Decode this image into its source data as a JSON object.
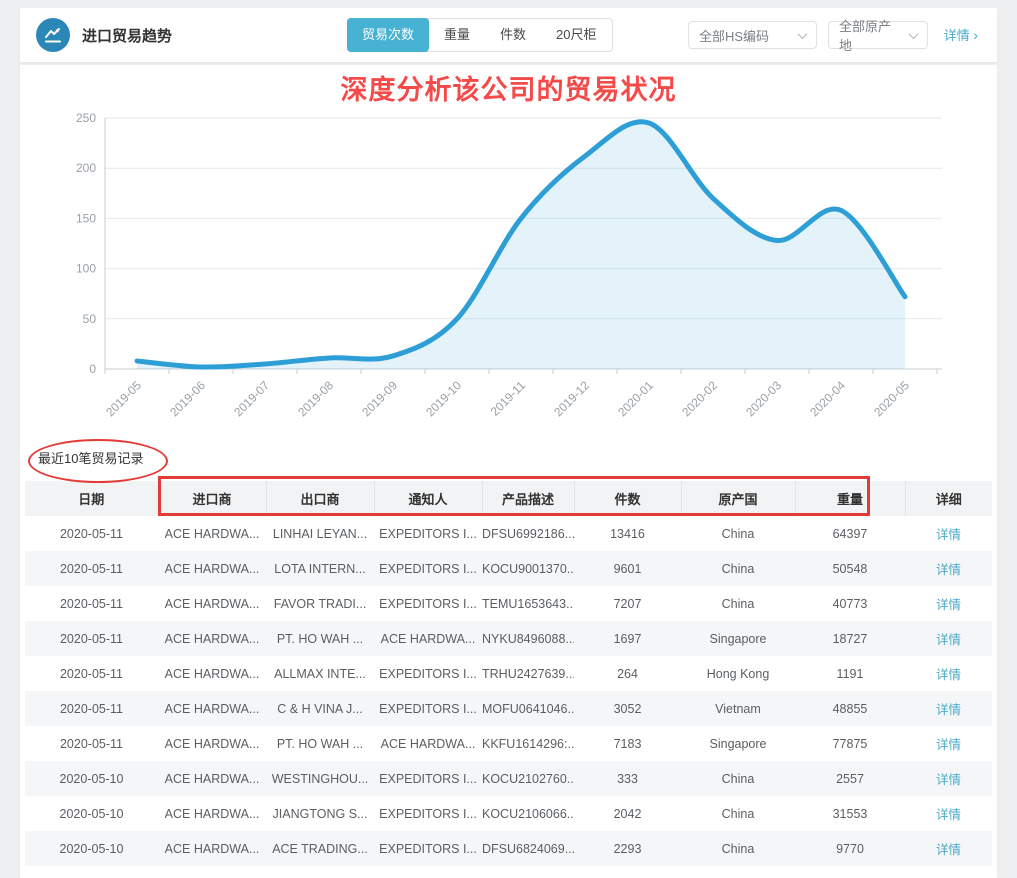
{
  "header": {
    "title": "进口贸易趋势",
    "tabs": [
      {
        "label": "贸易次数",
        "active": true
      },
      {
        "label": "重量",
        "active": false
      },
      {
        "label": "件数",
        "active": false
      },
      {
        "label": "20尺柜",
        "active": false
      }
    ],
    "hs_filter": "全部HS编码",
    "origin_filter": "全部原产地",
    "detail_link": "详情",
    "accent_color": "#48b2d3",
    "icon_color": "#2b87b8"
  },
  "annotations": {
    "chart_title": "深度分析该公司的贸易状况",
    "annotation_color": "#e33b36",
    "title_color": "#f54a4a"
  },
  "chart_data": {
    "type": "area",
    "title": "深度分析该公司的贸易状况",
    "x": [
      "2019-05",
      "2019-06",
      "2019-07",
      "2019-08",
      "2019-09",
      "2019-10",
      "2019-11",
      "2019-12",
      "2020-01",
      "2020-02",
      "2020-03",
      "2020-04",
      "2020-05"
    ],
    "series": [
      {
        "name": "贸易次数",
        "values": [
          8,
          2,
          5,
          11,
          13,
          50,
          150,
          212,
          245,
          170,
          128,
          158,
          72
        ]
      }
    ],
    "xlabel": "",
    "ylabel": "",
    "ylim": [
      0,
      250
    ],
    "yticks": [
      0,
      50,
      100,
      150,
      200,
      250
    ],
    "grid": true,
    "legend_position": "none",
    "line_color": "#2d9fd6",
    "fill_color": "rgba(45,159,214,0.13)"
  },
  "table": {
    "label": "最近10笔贸易记录",
    "columns": [
      "日期",
      "进口商",
      "出口商",
      "通知人",
      "产品描述",
      "件数",
      "原产国",
      "重量",
      "详细"
    ],
    "detail_label": "详情",
    "rows": [
      [
        "2020-05-11",
        "ACE HARDWA...",
        "LINHAI LEYAN...",
        "EXPEDITORS I...",
        "DFSU6992186...",
        "13416",
        "China",
        "64397"
      ],
      [
        "2020-05-11",
        "ACE HARDWA...",
        "LOTA INTERN...",
        "EXPEDITORS I...",
        "KOCU9001370...",
        "9601",
        "China",
        "50548"
      ],
      [
        "2020-05-11",
        "ACE HARDWA...",
        "FAVOR TRADI...",
        "EXPEDITORS I...",
        "TEMU1653643...",
        "7207",
        "China",
        "40773"
      ],
      [
        "2020-05-11",
        "ACE HARDWA...",
        "PT. HO WAH ...",
        "ACE HARDWA...",
        "NYKU8496088...",
        "1697",
        "Singapore",
        "18727"
      ],
      [
        "2020-05-11",
        "ACE HARDWA...",
        "ALLMAX INTE...",
        "EXPEDITORS I...",
        "TRHU2427639...",
        "264",
        "Hong Kong",
        "1191"
      ],
      [
        "2020-05-11",
        "ACE HARDWA...",
        "C & H VINA J...",
        "EXPEDITORS I...",
        "MOFU0641046...",
        "3052",
        "Vietnam",
        "48855"
      ],
      [
        "2020-05-11",
        "ACE HARDWA...",
        "PT. HO WAH ...",
        "ACE HARDWA...",
        "KKFU1614296:...",
        "7183",
        "Singapore",
        "77875"
      ],
      [
        "2020-05-10",
        "ACE HARDWA...",
        "WESTINGHOU...",
        "EXPEDITORS I...",
        "KOCU2102760...",
        "333",
        "China",
        "2557"
      ],
      [
        "2020-05-10",
        "ACE HARDWA...",
        "JIANGTONG S...",
        "EXPEDITORS I...",
        "KOCU2106066...",
        "2042",
        "China",
        "31553"
      ],
      [
        "2020-05-10",
        "ACE HARDWA...",
        "ACE TRADING...",
        "EXPEDITORS I...",
        "DFSU6824069...",
        "2293",
        "China",
        "9770"
      ]
    ]
  }
}
